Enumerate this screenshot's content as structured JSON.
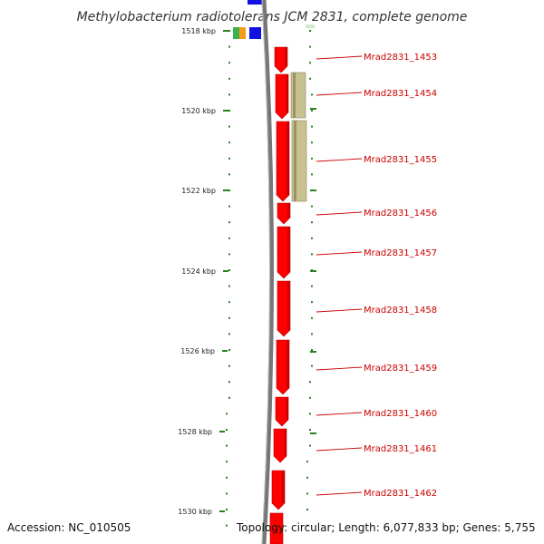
{
  "title": "Methylobacterium radiotolerans JCM 2831, complete genome",
  "accession": "Accession: NC_010505",
  "summary": "Topology: circular; Length: 6,077,833 bp; Genes: 5,755",
  "colors": {
    "gene": "#ff0000",
    "gene_dark": "#b00000",
    "feature": "#c8c191",
    "backbone": "#777777",
    "tick": "#2a7f1f",
    "label": "#cc0000",
    "blue": "#1010e0",
    "green": "#3bb34a",
    "orange": "#f59a1a"
  },
  "scale": {
    "start_kbp": 1518,
    "end_kbp": 1530,
    "labels": [
      "1518 kbp",
      "1520 kbp",
      "1522 kbp",
      "1524 kbp",
      "1526 kbp",
      "1528 kbp",
      "1530 kbp"
    ]
  },
  "genes": [
    {
      "label": "Mrad2831_1453"
    },
    {
      "label": "Mrad2831_1454"
    },
    {
      "label": "Mrad2831_1455"
    },
    {
      "label": "Mrad2831_1456"
    },
    {
      "label": "Mrad2831_1457"
    },
    {
      "label": "Mrad2831_1458"
    },
    {
      "label": "Mrad2831_1459"
    },
    {
      "label": "Mrad2831_1460"
    },
    {
      "label": "Mrad2831_1461"
    },
    {
      "label": "Mrad2831_1462"
    }
  ]
}
